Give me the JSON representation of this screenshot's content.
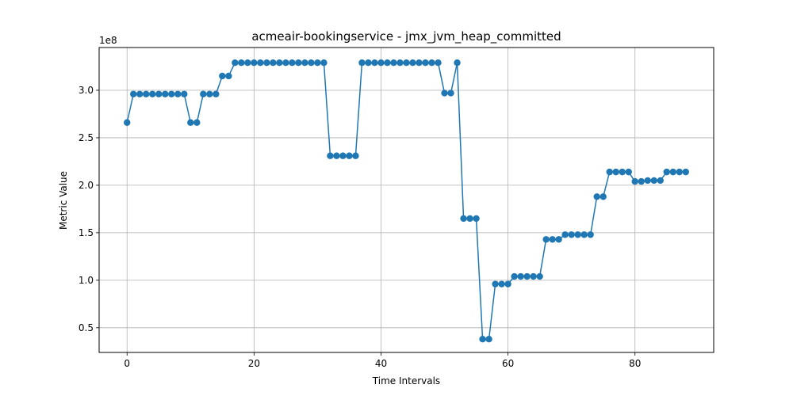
{
  "chart_data": {
    "type": "line",
    "title": "acmeair-bookingservice - jmx_jvm_heap_committed",
    "xlabel": "Time Intervals",
    "ylabel": "Metric Value",
    "y_offset_label": "1e8",
    "xlim": [
      -4.4,
      92.4
    ],
    "ylim": [
      24000000.0,
      345000000.0
    ],
    "x_ticks": [
      0,
      20,
      40,
      60,
      80
    ],
    "x_tick_labels": [
      "0",
      "20",
      "40",
      "60",
      "80"
    ],
    "y_ticks": [
      50000000.0,
      100000000.0,
      150000000.0,
      200000000.0,
      250000000.0,
      300000000.0
    ],
    "y_tick_labels": [
      "0.5",
      "1.0",
      "1.5",
      "2.0",
      "2.5",
      "3.0"
    ],
    "grid": true,
    "line_color": "#1f77b4",
    "series": [
      {
        "values": [
          266000000,
          296000000,
          296000000,
          296000000,
          296000000,
          296000000,
          296000000,
          296000000,
          296000000,
          296000000,
          266000000,
          266000000,
          296000000,
          296000000,
          296000000,
          315000000,
          315000000,
          329000000,
          329000000,
          329000000,
          329000000,
          329000000,
          329000000,
          329000000,
          329000000,
          329000000,
          329000000,
          329000000,
          329000000,
          329000000,
          329000000,
          329000000,
          231000000,
          231000000,
          231000000,
          231000000,
          231000000,
          329000000,
          329000000,
          329000000,
          329000000,
          329000000,
          329000000,
          329000000,
          329000000,
          329000000,
          329000000,
          329000000,
          329000000,
          329000000,
          297000000,
          297000000,
          329000000,
          165000000,
          165000000,
          165000000,
          38000000,
          38000000,
          96000000,
          96000000,
          96000000,
          104000000,
          104000000,
          104000000,
          104000000,
          104000000,
          143000000,
          143000000,
          143000000,
          148000000,
          148000000,
          148000000,
          148000000,
          148000000,
          188000000,
          188000000,
          214000000,
          214000000,
          214000000,
          214000000,
          204000000,
          204000000,
          205000000,
          205000000,
          205000000,
          214000000,
          214000000,
          214000000,
          214000000
        ]
      }
    ]
  }
}
